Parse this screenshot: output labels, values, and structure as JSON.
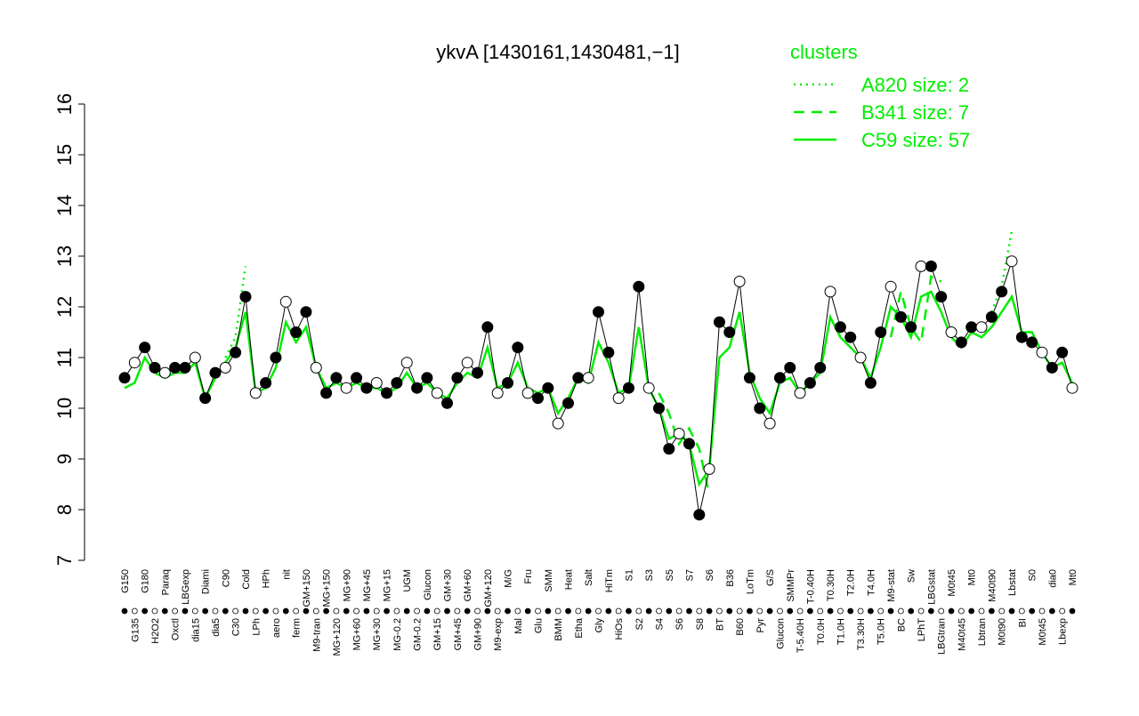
{
  "chart_data": {
    "type": "line",
    "title": "ykvA [1430161,1430481,−1]",
    "legend_title": "clusters",
    "ylim": [
      7,
      16
    ],
    "yticks": [
      7,
      8,
      9,
      10,
      11,
      12,
      13,
      14,
      15,
      16
    ],
    "categories": [
      "G150",
      "G135",
      "G180",
      "H2O2",
      "Paraq",
      "Oxctl",
      "LBGexp",
      "dia15",
      "Diami",
      "dia5",
      "C90",
      "C30",
      "Cold",
      "LPh",
      "HPh",
      "aero",
      "nit",
      "ferm",
      "GM+150",
      "M9-tran",
      "MG+150",
      "MG+120",
      "MG+90",
      "MG+60",
      "MG+45",
      "MG+30",
      "MG+15",
      "MG-0.2",
      "UGM",
      "GM-0.2",
      "Glucon",
      "GM+15",
      "GM+30",
      "GM+45",
      "GM+60",
      "GM+90",
      "GM+120",
      "M9-exp",
      "M/G",
      "Mal",
      "Fru",
      "Glu",
      "SMM",
      "BMM",
      "Heat",
      "Etha",
      "Salt",
      "Gly",
      "HiTm",
      "HiOs",
      "S1",
      "S2",
      "S3",
      "S4",
      "S5",
      "S6",
      "S7",
      "S8",
      "S6",
      "BT",
      "B36",
      "B60",
      "LoTm",
      "Pyr",
      "G/S",
      "Glucon",
      "SMMPr",
      "T-5.40H",
      "T-0.40H",
      "T0.0H",
      "T0.30H",
      "T1.0H",
      "T2.0H",
      "T3.30H",
      "T4.0H",
      "T5.0H",
      "M9-stat",
      "BC",
      "Sw",
      "LPhT",
      "LBGstat",
      "LBGtran",
      "M0t45",
      "M40t45",
      "Mt0",
      "Lbtran",
      "M40t90",
      "M0t90",
      "Lbstat",
      "BI",
      "S0",
      "M0t45",
      "dia0",
      "Lbexp",
      "Mt0"
    ],
    "values": [
      10.6,
      10.9,
      11.2,
      10.8,
      10.7,
      10.8,
      10.8,
      11.0,
      10.2,
      10.7,
      10.8,
      11.1,
      12.2,
      10.3,
      10.5,
      11.0,
      12.1,
      11.5,
      11.9,
      10.8,
      10.3,
      10.6,
      10.4,
      10.6,
      10.4,
      10.5,
      10.3,
      10.5,
      10.9,
      10.4,
      10.6,
      10.3,
      10.1,
      10.6,
      10.9,
      10.7,
      11.6,
      10.3,
      10.5,
      11.2,
      10.3,
      10.2,
      10.4,
      9.7,
      10.1,
      10.6,
      10.6,
      11.9,
      11.1,
      10.2,
      10.4,
      12.4,
      10.4,
      10.0,
      9.2,
      9.5,
      9.3,
      7.9,
      8.8,
      11.7,
      11.5,
      12.5,
      10.6,
      10.0,
      9.7,
      10.6,
      10.8,
      10.3,
      10.5,
      10.8,
      12.3,
      11.6,
      11.4,
      11.0,
      10.5,
      11.5,
      12.4,
      11.8,
      11.6,
      12.8,
      12.8,
      12.2,
      11.5,
      11.3,
      11.6,
      11.6,
      11.8,
      12.3,
      12.9,
      11.4,
      11.3,
      11.1,
      10.8,
      11.1,
      10.4
    ],
    "series": [
      {
        "name": "A820 size: 2",
        "color": "#00ee00",
        "style": "dotted",
        "values": [
          null,
          null,
          null,
          null,
          null,
          null,
          null,
          null,
          null,
          null,
          11.0,
          11.4,
          12.8,
          null,
          null,
          null,
          null,
          null,
          null,
          null,
          null,
          null,
          null,
          null,
          null,
          null,
          null,
          null,
          null,
          null,
          null,
          null,
          null,
          null,
          null,
          null,
          null,
          null,
          null,
          null,
          null,
          null,
          null,
          null,
          null,
          null,
          null,
          null,
          null,
          null,
          null,
          null,
          null,
          null,
          null,
          null,
          null,
          null,
          null,
          null,
          null,
          null,
          null,
          null,
          null,
          null,
          null,
          null,
          null,
          null,
          null,
          null,
          null,
          null,
          null,
          null,
          null,
          null,
          null,
          null,
          null,
          null,
          null,
          null,
          null,
          null,
          11.9,
          12.4,
          13.5,
          null,
          null,
          null,
          null,
          null,
          null
        ]
      },
      {
        "name": "B341 size: 7",
        "color": "#00ee00",
        "style": "dashed",
        "values": [
          null,
          null,
          null,
          null,
          null,
          null,
          null,
          null,
          null,
          null,
          null,
          null,
          null,
          null,
          null,
          null,
          null,
          null,
          null,
          null,
          null,
          null,
          null,
          null,
          null,
          null,
          null,
          null,
          null,
          null,
          null,
          null,
          null,
          null,
          null,
          null,
          null,
          null,
          null,
          null,
          null,
          null,
          null,
          null,
          null,
          null,
          null,
          null,
          null,
          null,
          null,
          null,
          null,
          10.3,
          9.9,
          9.3,
          9.6,
          9.2,
          8.3,
          null,
          null,
          null,
          null,
          null,
          null,
          null,
          null,
          null,
          null,
          null,
          null,
          null,
          null,
          null,
          null,
          null,
          11.4,
          12.3,
          11.6,
          11.3,
          12.6,
          12.5,
          null,
          null,
          null,
          null,
          null,
          null,
          null,
          null,
          null,
          null,
          null,
          null,
          null
        ]
      },
      {
        "name": "C59 size: 57",
        "color": "#00ee00",
        "style": "solid",
        "values": [
          10.4,
          10.5,
          11.0,
          10.7,
          10.6,
          10.7,
          10.7,
          10.9,
          10.2,
          10.6,
          10.9,
          11.2,
          11.9,
          10.3,
          10.4,
          10.8,
          11.7,
          11.3,
          11.6,
          10.8,
          10.4,
          10.5,
          10.4,
          10.5,
          10.4,
          10.4,
          10.3,
          10.4,
          10.7,
          10.4,
          10.5,
          10.3,
          10.2,
          10.5,
          10.7,
          10.6,
          11.2,
          10.4,
          10.5,
          10.9,
          10.4,
          10.3,
          10.4,
          9.9,
          10.2,
          10.6,
          10.5,
          11.3,
          10.9,
          10.3,
          10.4,
          11.6,
          10.4,
          10.0,
          9.4,
          9.5,
          9.3,
          8.5,
          8.8,
          11.0,
          11.2,
          11.9,
          10.7,
          10.2,
          9.9,
          10.5,
          10.6,
          10.3,
          10.5,
          10.7,
          11.8,
          11.4,
          11.2,
          11.0,
          10.6,
          11.2,
          12.0,
          11.8,
          11.4,
          12.2,
          12.3,
          11.9,
          11.4,
          11.2,
          11.5,
          11.4,
          11.6,
          11.9,
          12.2,
          11.5,
          11.5,
          11.1,
          10.8,
          10.9,
          10.5
        ]
      }
    ]
  }
}
